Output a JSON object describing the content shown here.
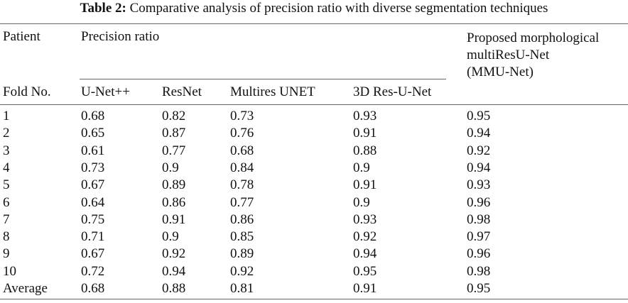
{
  "caption": {
    "label": "Table 2:",
    "text": "Comparative analysis of precision ratio with diverse segmentation techniques"
  },
  "header": {
    "patient": "Patient",
    "group": "Precision ratio",
    "fold": "Fold No.",
    "proposed_lines": [
      "Proposed morphological",
      "multiResU-Net",
      "(MMU-Net)"
    ],
    "columns": [
      "U-Net++",
      "ResNet",
      "Multires UNET",
      "3D Res-U-Net"
    ]
  },
  "rows": [
    [
      "1",
      "0.68",
      "0.82",
      "0.73",
      "0.93",
      "0.95"
    ],
    [
      "2",
      "0.65",
      "0.87",
      "0.76",
      "0.91",
      "0.94"
    ],
    [
      "3",
      "0.61",
      "0.77",
      "0.68",
      "0.88",
      "0.92"
    ],
    [
      "4",
      "0.73",
      "0.9",
      "0.84",
      "0.9",
      "0.94"
    ],
    [
      "5",
      "0.67",
      "0.89",
      "0.78",
      "0.91",
      "0.93"
    ],
    [
      "6",
      "0.64",
      "0.86",
      "0.77",
      "0.9",
      "0.96"
    ],
    [
      "7",
      "0.75",
      "0.91",
      "0.86",
      "0.93",
      "0.98"
    ],
    [
      "8",
      "0.71",
      "0.9",
      "0.85",
      "0.92",
      "0.97"
    ],
    [
      "9",
      "0.67",
      "0.92",
      "0.89",
      "0.94",
      "0.96"
    ],
    [
      "10",
      "0.72",
      "0.94",
      "0.92",
      "0.95",
      "0.98"
    ],
    [
      "Average",
      "0.68",
      "0.88",
      "0.81",
      "0.91",
      "0.95"
    ]
  ]
}
